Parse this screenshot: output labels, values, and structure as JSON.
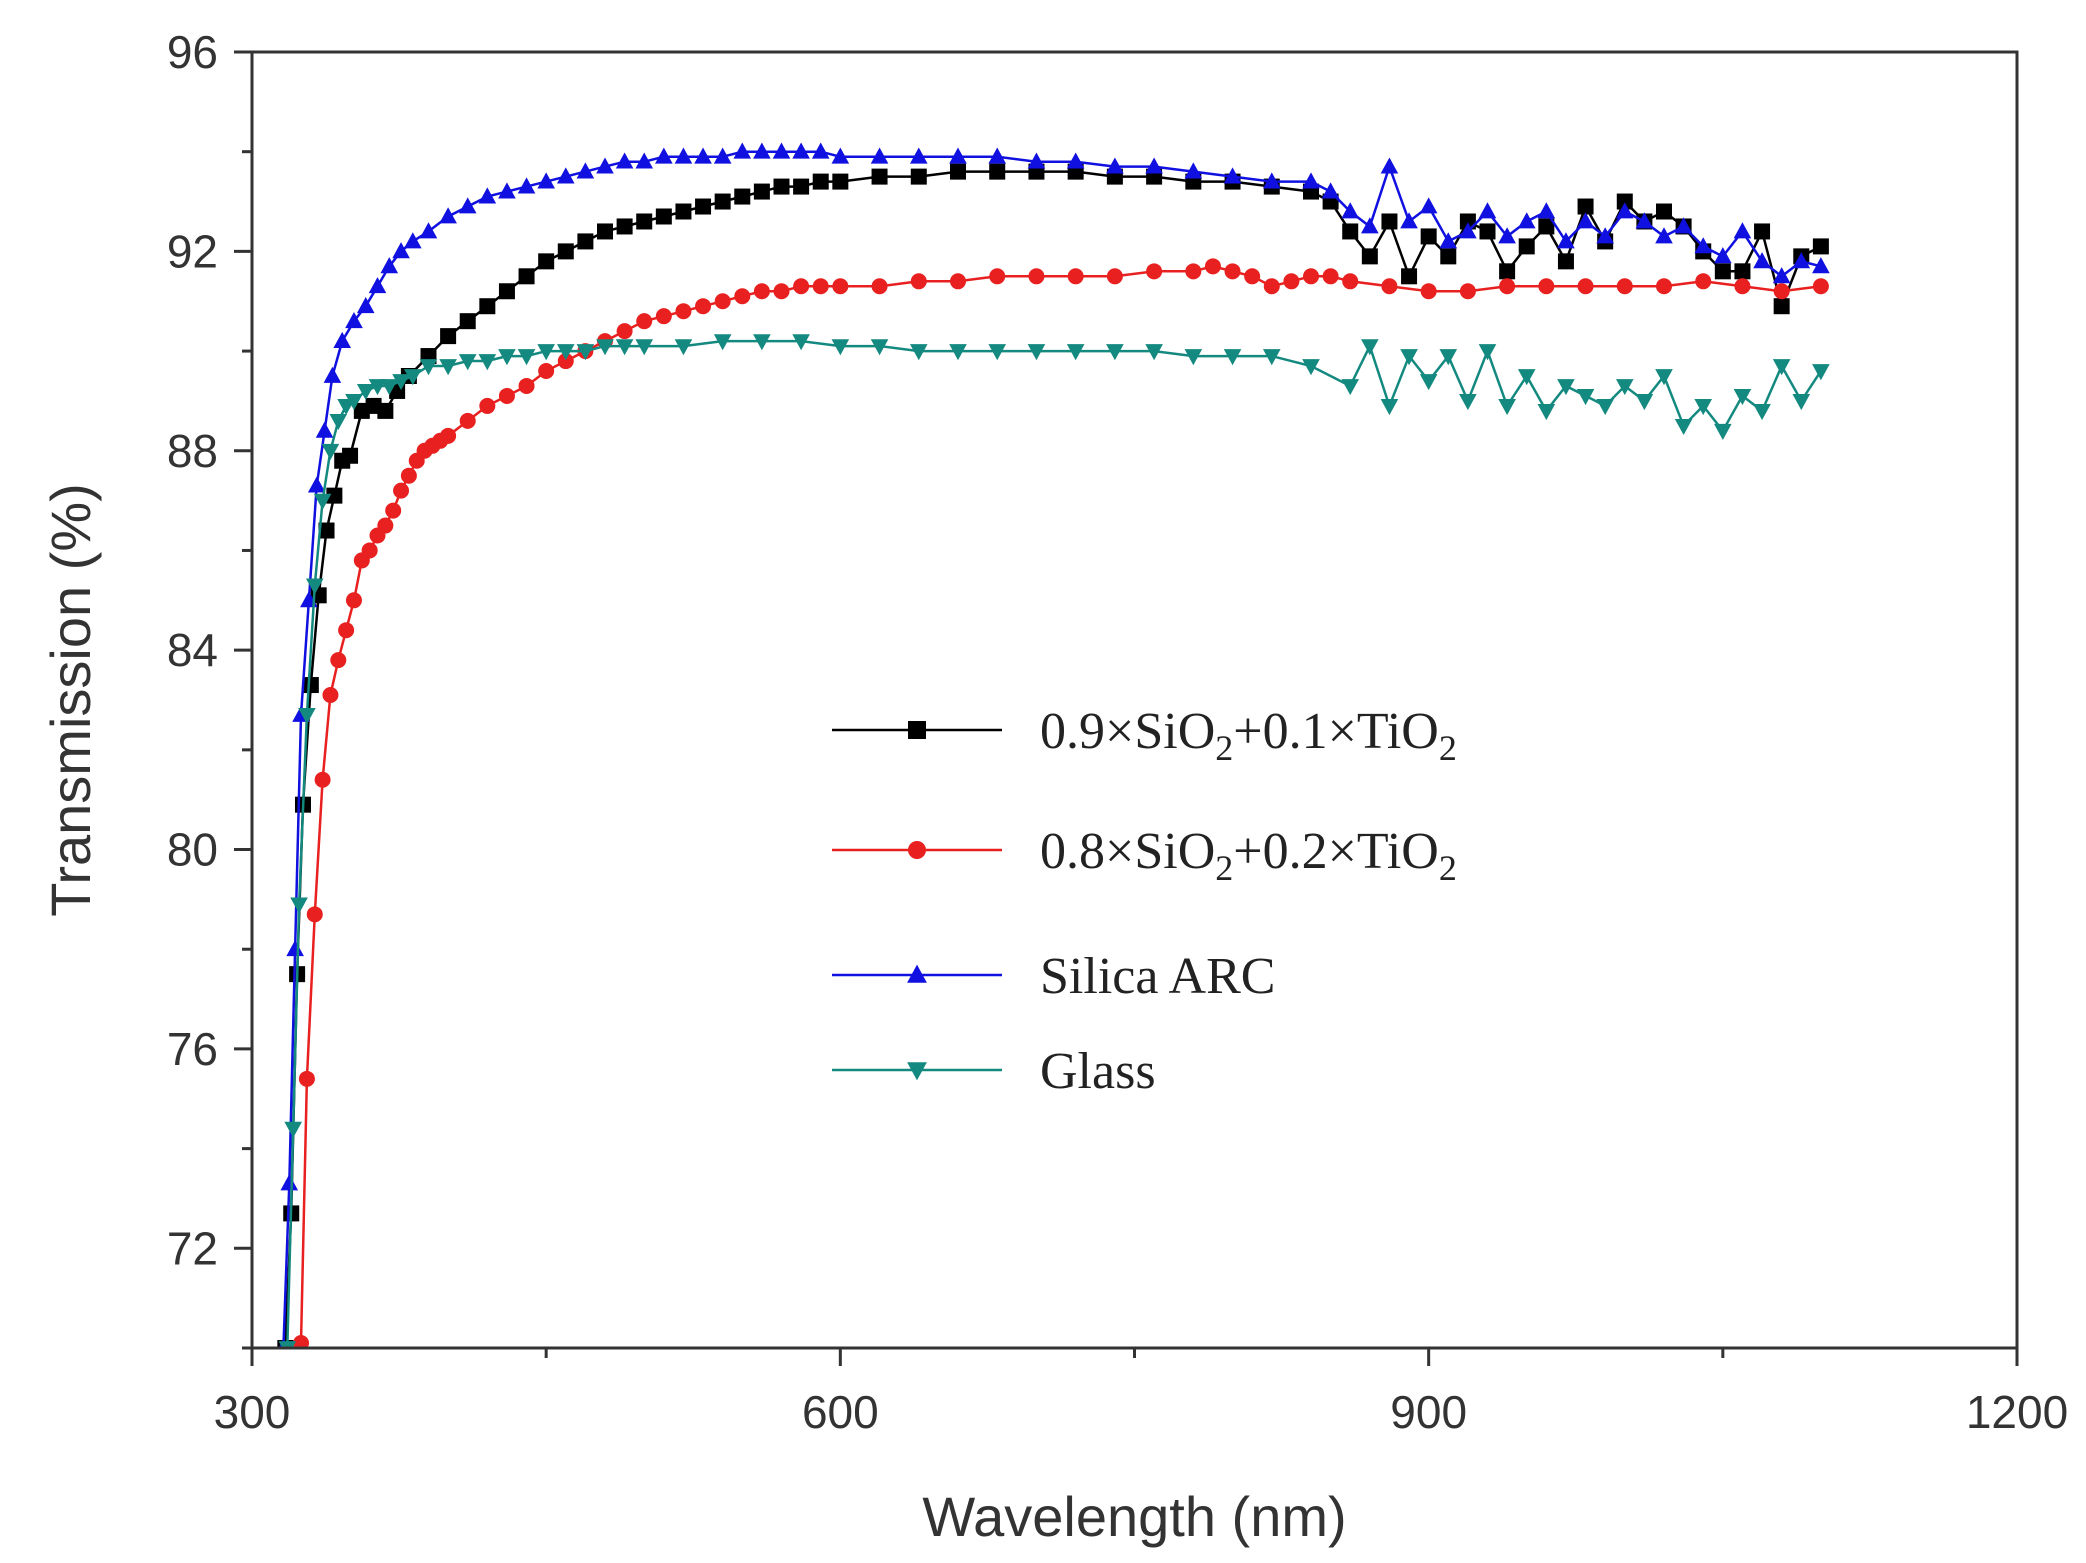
{
  "chart_data": {
    "type": "line",
    "xlabel": "Wavelength (nm)",
    "ylabel": "Transmission (%)",
    "xlim": [
      300,
      1200
    ],
    "ylim": [
      70,
      96
    ],
    "xticks": [
      300,
      600,
      900,
      1200
    ],
    "yticks": [
      72,
      76,
      80,
      84,
      88,
      92,
      96
    ],
    "xtick_labels": [
      "300",
      "600",
      "900",
      "1200"
    ],
    "ytick_labels": [
      "72",
      "76",
      "80",
      "84",
      "88",
      "92",
      "96"
    ],
    "grid": false,
    "legend_position": "center",
    "series": [
      {
        "name": "0.9×SiO2+0.1×TiO2",
        "legend_parts": [
          "0.9×SiO",
          "2",
          "+0.1×TiO",
          "2"
        ],
        "color": "#000000",
        "marker": "square",
        "x": [
          317,
          320,
          323,
          326,
          330,
          334,
          338,
          342,
          346,
          350,
          356,
          362,
          368,
          374,
          380,
          390,
          400,
          410,
          420,
          430,
          440,
          450,
          460,
          470,
          480,
          490,
          500,
          510,
          520,
          530,
          540,
          550,
          560,
          570,
          580,
          590,
          600,
          620,
          640,
          660,
          680,
          700,
          720,
          740,
          760,
          780,
          800,
          820,
          840,
          850,
          860,
          870,
          880,
          890,
          900,
          910,
          920,
          930,
          940,
          950,
          960,
          970,
          980,
          990,
          1000,
          1010,
          1020,
          1030,
          1040,
          1050,
          1060,
          1070,
          1080,
          1090,
          1100
        ],
        "y": [
          70.0,
          72.7,
          77.5,
          80.9,
          83.3,
          85.1,
          86.4,
          87.1,
          87.8,
          87.9,
          88.8,
          88.9,
          88.8,
          89.2,
          89.5,
          89.9,
          90.3,
          90.6,
          90.9,
          91.2,
          91.5,
          91.8,
          92.0,
          92.2,
          92.4,
          92.5,
          92.6,
          92.7,
          92.8,
          92.9,
          93.0,
          93.1,
          93.2,
          93.3,
          93.3,
          93.4,
          93.4,
          93.5,
          93.5,
          93.6,
          93.6,
          93.6,
          93.6,
          93.5,
          93.5,
          93.4,
          93.4,
          93.3,
          93.2,
          93.0,
          92.4,
          91.9,
          92.6,
          91.5,
          92.3,
          91.9,
          92.6,
          92.4,
          91.6,
          92.1,
          92.5,
          91.8,
          92.9,
          92.2,
          93.0,
          92.6,
          92.8,
          92.5,
          92.0,
          91.6,
          91.6,
          92.4,
          90.9,
          91.9,
          92.1
        ]
      },
      {
        "name": "0.8×SiO2+0.2×TiO2",
        "legend_parts": [
          "0.8×SiO",
          "2",
          "+0.2×TiO",
          "2"
        ],
        "color": "#e8201f",
        "marker": "circle",
        "x": [
          325,
          328,
          332,
          336,
          340,
          344,
          348,
          352,
          356,
          360,
          364,
          368,
          372,
          376,
          380,
          384,
          388,
          392,
          396,
          400,
          410,
          420,
          430,
          440,
          450,
          460,
          470,
          480,
          490,
          500,
          510,
          520,
          530,
          540,
          550,
          560,
          570,
          580,
          590,
          600,
          620,
          640,
          660,
          680,
          700,
          720,
          740,
          760,
          780,
          790,
          800,
          810,
          820,
          830,
          840,
          850,
          860,
          880,
          900,
          920,
          940,
          960,
          980,
          1000,
          1020,
          1040,
          1060,
          1080,
          1100
        ],
        "y": [
          70.1,
          75.4,
          78.7,
          81.4,
          83.1,
          83.8,
          84.4,
          85.0,
          85.8,
          86.0,
          86.3,
          86.5,
          86.8,
          87.2,
          87.5,
          87.8,
          88.0,
          88.1,
          88.2,
          88.3,
          88.6,
          88.9,
          89.1,
          89.3,
          89.6,
          89.8,
          90.0,
          90.2,
          90.4,
          90.6,
          90.7,
          90.8,
          90.9,
          91.0,
          91.1,
          91.2,
          91.2,
          91.3,
          91.3,
          91.3,
          91.3,
          91.4,
          91.4,
          91.5,
          91.5,
          91.5,
          91.5,
          91.6,
          91.6,
          91.7,
          91.6,
          91.5,
          91.3,
          91.4,
          91.5,
          91.5,
          91.4,
          91.3,
          91.2,
          91.2,
          91.3,
          91.3,
          91.3,
          91.3,
          91.3,
          91.4,
          91.3,
          91.2,
          91.3
        ]
      },
      {
        "name": "Silica ARC",
        "legend_parts": [
          "Silica ARC"
        ],
        "color": "#1010e0",
        "marker": "triangle-up",
        "x": [
          316,
          319,
          322,
          325,
          329,
          333,
          337,
          341,
          346,
          352,
          358,
          364,
          370,
          376,
          382,
          390,
          400,
          410,
          420,
          430,
          440,
          450,
          460,
          470,
          480,
          490,
          500,
          510,
          520,
          530,
          540,
          550,
          560,
          570,
          580,
          590,
          600,
          620,
          640,
          660,
          680,
          700,
          720,
          740,
          760,
          780,
          800,
          820,
          840,
          850,
          860,
          870,
          880,
          890,
          900,
          910,
          920,
          930,
          940,
          950,
          960,
          970,
          980,
          990,
          1000,
          1010,
          1020,
          1030,
          1040,
          1050,
          1060,
          1070,
          1080,
          1090,
          1100
        ],
        "y": [
          70.0,
          73.3,
          78.0,
          82.7,
          85.0,
          87.3,
          88.4,
          89.5,
          90.2,
          90.6,
          90.9,
          91.3,
          91.7,
          92.0,
          92.2,
          92.4,
          92.7,
          92.9,
          93.1,
          93.2,
          93.3,
          93.4,
          93.5,
          93.6,
          93.7,
          93.8,
          93.8,
          93.9,
          93.9,
          93.9,
          93.9,
          94.0,
          94.0,
          94.0,
          94.0,
          94.0,
          93.9,
          93.9,
          93.9,
          93.9,
          93.9,
          93.8,
          93.8,
          93.7,
          93.7,
          93.6,
          93.5,
          93.4,
          93.4,
          93.2,
          92.8,
          92.5,
          93.7,
          92.6,
          92.9,
          92.2,
          92.4,
          92.8,
          92.3,
          92.6,
          92.8,
          92.2,
          92.6,
          92.3,
          92.8,
          92.6,
          92.3,
          92.5,
          92.1,
          91.9,
          92.4,
          91.8,
          91.5,
          91.8,
          91.7
        ]
      },
      {
        "name": "Glass",
        "legend_parts": [
          "Glass"
        ],
        "color": "#14897f",
        "marker": "triangle-down",
        "x": [
          318,
          321,
          324,
          328,
          332,
          336,
          340,
          344,
          348,
          352,
          358,
          364,
          370,
          376,
          382,
          390,
          400,
          410,
          420,
          430,
          440,
          450,
          460,
          470,
          480,
          490,
          500,
          520,
          540,
          560,
          580,
          600,
          620,
          640,
          660,
          680,
          700,
          720,
          740,
          760,
          780,
          800,
          820,
          840,
          860,
          870,
          880,
          890,
          900,
          910,
          920,
          930,
          940,
          950,
          960,
          970,
          980,
          990,
          1000,
          1010,
          1020,
          1030,
          1040,
          1050,
          1060,
          1070,
          1080,
          1090,
          1100
        ],
        "y": [
          70.0,
          74.4,
          78.9,
          82.7,
          85.3,
          87.0,
          88.0,
          88.6,
          88.9,
          89.0,
          89.2,
          89.3,
          89.3,
          89.4,
          89.5,
          89.7,
          89.7,
          89.8,
          89.8,
          89.9,
          89.9,
          90.0,
          90.0,
          90.0,
          90.1,
          90.1,
          90.1,
          90.1,
          90.2,
          90.2,
          90.2,
          90.1,
          90.1,
          90.0,
          90.0,
          90.0,
          90.0,
          90.0,
          90.0,
          90.0,
          89.9,
          89.9,
          89.9,
          89.7,
          89.3,
          90.1,
          88.9,
          89.9,
          89.4,
          89.9,
          89.0,
          90.0,
          88.9,
          89.5,
          88.8,
          89.3,
          89.1,
          88.9,
          89.3,
          89.0,
          89.5,
          88.5,
          88.9,
          88.4,
          89.1,
          88.8,
          89.7,
          89.0,
          89.6
        ]
      }
    ]
  }
}
